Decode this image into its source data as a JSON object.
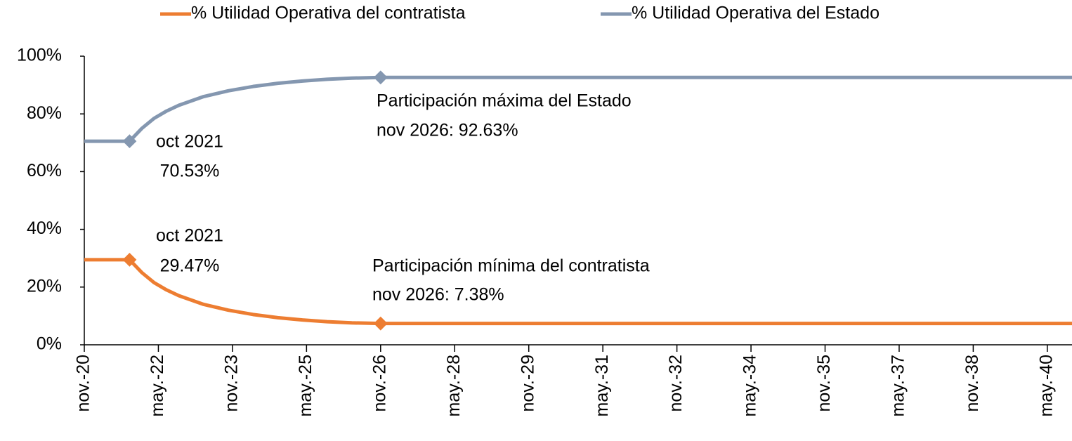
{
  "chart_data": {
    "type": "line",
    "x": [
      "2020-11",
      "2021-10",
      "2022-01",
      "2022-04",
      "2022-07",
      "2022-10",
      "2023-04",
      "2023-10",
      "2024-04",
      "2024-10",
      "2025-04",
      "2025-10",
      "2026-04",
      "2026-11",
      "2040-11"
    ],
    "series": [
      {
        "name": "% Utilidad Operativa del contratista",
        "color": "#ed7d31",
        "values": [
          29.47,
          29.47,
          25,
          21.5,
          19,
          17,
          14,
          12,
          10.5,
          9.4,
          8.6,
          8.0,
          7.6,
          7.38,
          7.38
        ],
        "markers": [
          "2021-10",
          "2026-11"
        ]
      },
      {
        "name": "% Utilidad Operativa del Estado",
        "color": "#8497b0",
        "values": [
          70.53,
          70.53,
          75,
          78.5,
          81,
          83,
          86,
          88,
          89.5,
          90.6,
          91.4,
          92,
          92.4,
          92.63,
          92.63
        ],
        "markers": [
          "2021-10",
          "2026-11"
        ]
      }
    ],
    "xlim": [
      "2020-11",
      "2040-11"
    ],
    "xticks": [
      {
        "value": "2020-11",
        "label": "nov.-20"
      },
      {
        "value": "2022-05",
        "label": "may.-22"
      },
      {
        "value": "2023-11",
        "label": "nov.-23"
      },
      {
        "value": "2025-05",
        "label": "may.-25"
      },
      {
        "value": "2026-11",
        "label": "nov.-26"
      },
      {
        "value": "2028-05",
        "label": "may.-28"
      },
      {
        "value": "2029-11",
        "label": "nov.-29"
      },
      {
        "value": "2031-05",
        "label": "may.-31"
      },
      {
        "value": "2032-11",
        "label": "nov.-32"
      },
      {
        "value": "2034-05",
        "label": "may.-34"
      },
      {
        "value": "2035-11",
        "label": "nov.-35"
      },
      {
        "value": "2037-05",
        "label": "may.-37"
      },
      {
        "value": "2038-11",
        "label": "nov.-38"
      },
      {
        "value": "2040-05",
        "label": "may.-40"
      }
    ],
    "ylim": [
      0,
      100
    ],
    "yticks": [
      {
        "value": 0,
        "label": "0%"
      },
      {
        "value": 20,
        "label": "20%"
      },
      {
        "value": 40,
        "label": "40%"
      },
      {
        "value": 60,
        "label": "60%"
      },
      {
        "value": 80,
        "label": "80%"
      },
      {
        "value": 100,
        "label": "100%"
      }
    ],
    "legend": "top",
    "annotations": [
      [
        "oct 2021",
        "70.53%"
      ],
      [
        "Participación máxima del Estado",
        "nov 2026: 92.63%"
      ],
      [
        "oct 2021",
        "29.47%"
      ],
      [
        "Participación mínima del contratista",
        "nov 2026: 7.38%"
      ]
    ]
  }
}
